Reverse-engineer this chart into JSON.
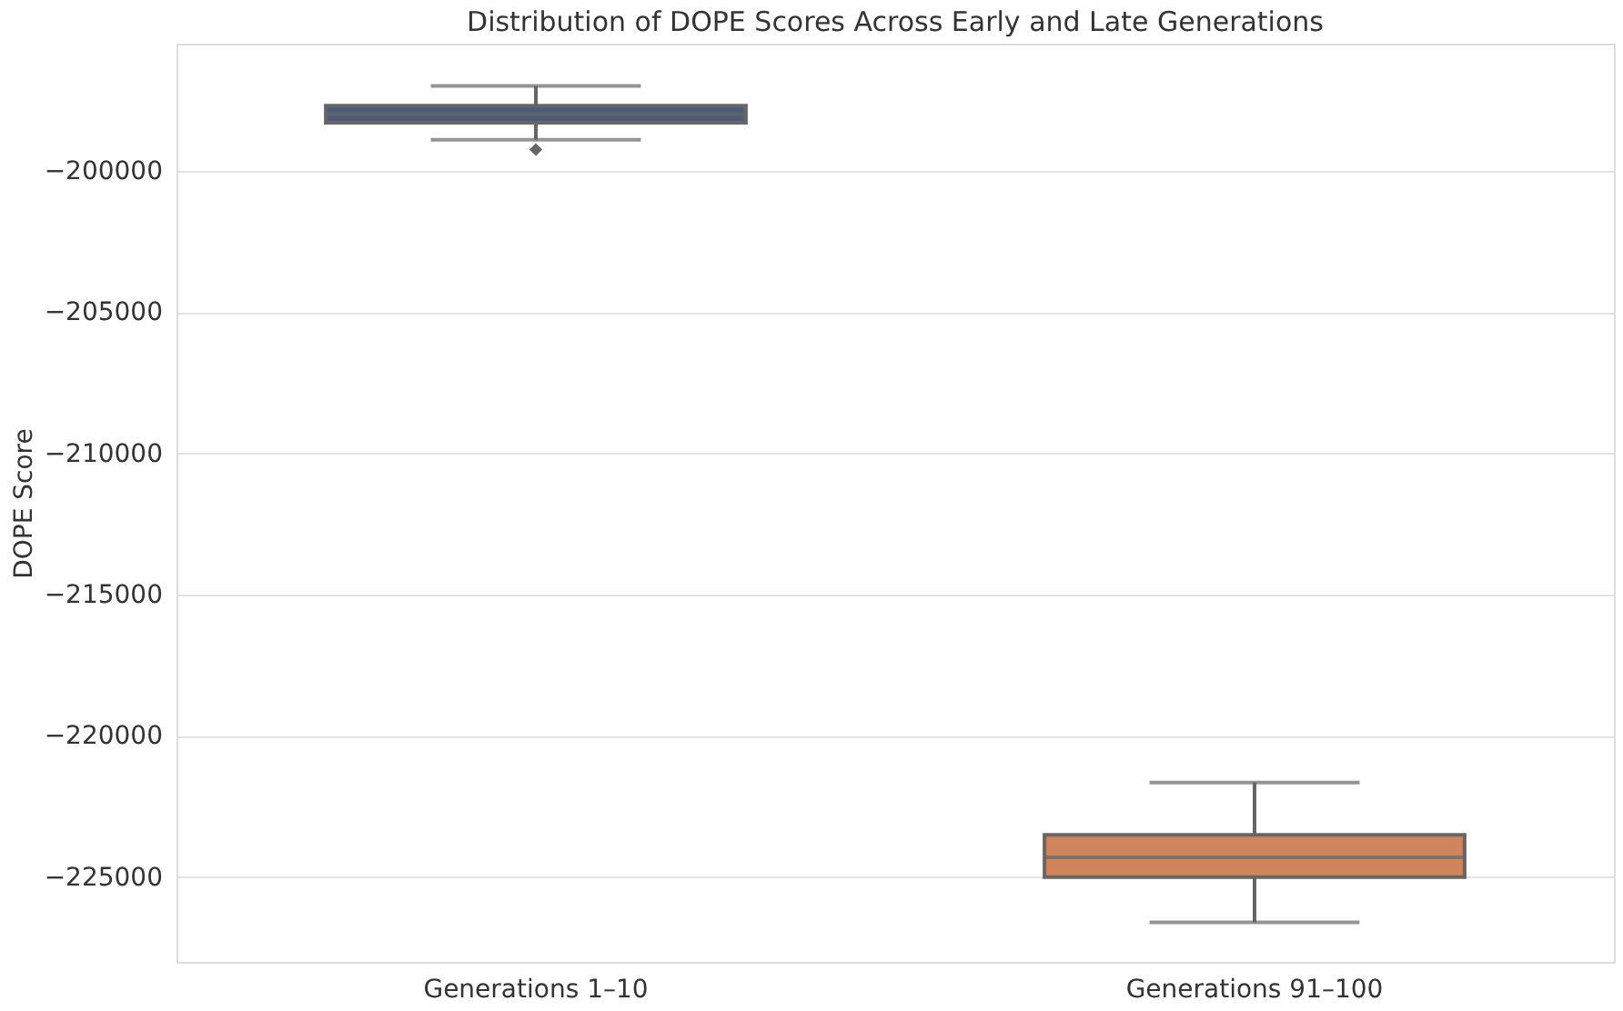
{
  "chart_data": {
    "type": "box",
    "title": "Distribution of DOPE Scores Across Early and Late Generations",
    "ylabel": "DOPE Score",
    "categories": [
      "Generations 1–10",
      "Generations 91–100"
    ],
    "colors": [
      "#4c5b78",
      "#d0845c"
    ],
    "boxes": [
      {
        "low": -198900,
        "q1": -198300,
        "median": -198000,
        "q3": -197700,
        "high": -197000,
        "outliers": [
          -199250
        ]
      },
      {
        "low": -226600,
        "q1": -225000,
        "median": -224300,
        "q3": -223500,
        "high": -221650
      }
    ],
    "ylim": [
      -228000,
      -195500
    ],
    "yticks": [
      -225000,
      -220000,
      -215000,
      -210000,
      -205000,
      -200000
    ],
    "grid": "y",
    "marker": "diamond"
  }
}
